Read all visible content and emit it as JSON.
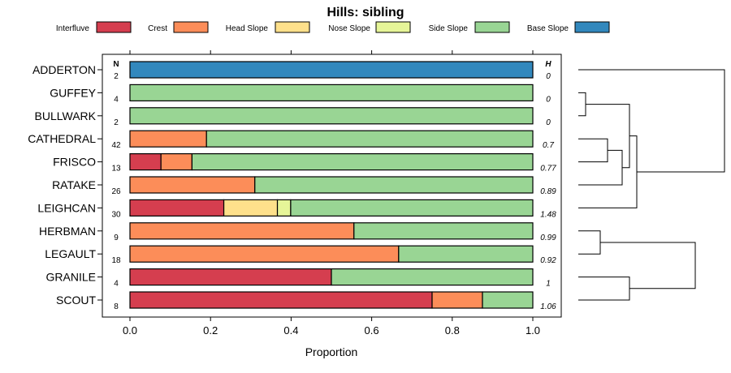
{
  "chart_data": {
    "type": "bar",
    "stacked": true,
    "orientation": "horizontal",
    "title": "Hills: sibling",
    "xlabel": "Proportion",
    "xlim": [
      0,
      1
    ],
    "xticks": [
      "0.0",
      "0.2",
      "0.4",
      "0.6",
      "0.8",
      "1.0"
    ],
    "n_header": "N",
    "h_header": "H",
    "legend": [
      {
        "name": "Interfluve",
        "color": "#D53E4F"
      },
      {
        "name": "Crest",
        "color": "#FC8D59"
      },
      {
        "name": "Head Slope",
        "color": "#FEE08B"
      },
      {
        "name": "Nose Slope",
        "color": "#E6F598"
      },
      {
        "name": "Side Slope",
        "color": "#99D594"
      },
      {
        "name": "Base Slope",
        "color": "#3288BD"
      }
    ],
    "rows": [
      {
        "name": "ADDERTON",
        "n": "2",
        "h": "0",
        "values": [
          0,
          0,
          0,
          0,
          0,
          1
        ]
      },
      {
        "name": "GUFFEY",
        "n": "4",
        "h": "0",
        "values": [
          0,
          0,
          0,
          0,
          1,
          0
        ]
      },
      {
        "name": "BULLWARK",
        "n": "2",
        "h": "0",
        "values": [
          0,
          0,
          0,
          0,
          1,
          0
        ]
      },
      {
        "name": "CATHEDRAL",
        "n": "42",
        "h": "0.7",
        "values": [
          0,
          0.19,
          0,
          0,
          0.81,
          0
        ]
      },
      {
        "name": "FRISCO",
        "n": "13",
        "h": "0.77",
        "values": [
          0.077,
          0.077,
          0,
          0,
          0.846,
          0
        ]
      },
      {
        "name": "RATAKE",
        "n": "26",
        "h": "0.89",
        "values": [
          0,
          0.31,
          0,
          0,
          0.69,
          0
        ]
      },
      {
        "name": "LEIGHCAN",
        "n": "30",
        "h": "1.48",
        "values": [
          0.233,
          0,
          0.133,
          0.033,
          0.601,
          0
        ]
      },
      {
        "name": "HERBMAN",
        "n": "9",
        "h": "0.99",
        "values": [
          0,
          0.556,
          0,
          0,
          0.444,
          0
        ]
      },
      {
        "name": "LEGAULT",
        "n": "18",
        "h": "0.92",
        "values": [
          0,
          0.667,
          0,
          0,
          0.333,
          0
        ]
      },
      {
        "name": "GRANILE",
        "n": "4",
        "h": "1",
        "values": [
          0.5,
          0,
          0,
          0,
          0.5,
          0
        ]
      },
      {
        "name": "SCOUT",
        "n": "8",
        "h": "1.06",
        "values": [
          0.75,
          0.125,
          0,
          0,
          0.125,
          0
        ]
      }
    ],
    "dendrogram_merges": [
      [
        1,
        2,
        0.05
      ],
      [
        3,
        4,
        0.2
      ],
      [
        12,
        5,
        0.3
      ],
      [
        11,
        13,
        0.35
      ],
      [
        7,
        8,
        0.15
      ],
      [
        9,
        10,
        0.35
      ],
      [
        14,
        6,
        0.4
      ],
      [
        16,
        15,
        0.8
      ],
      [
        17,
        0,
        1.0
      ]
    ]
  }
}
